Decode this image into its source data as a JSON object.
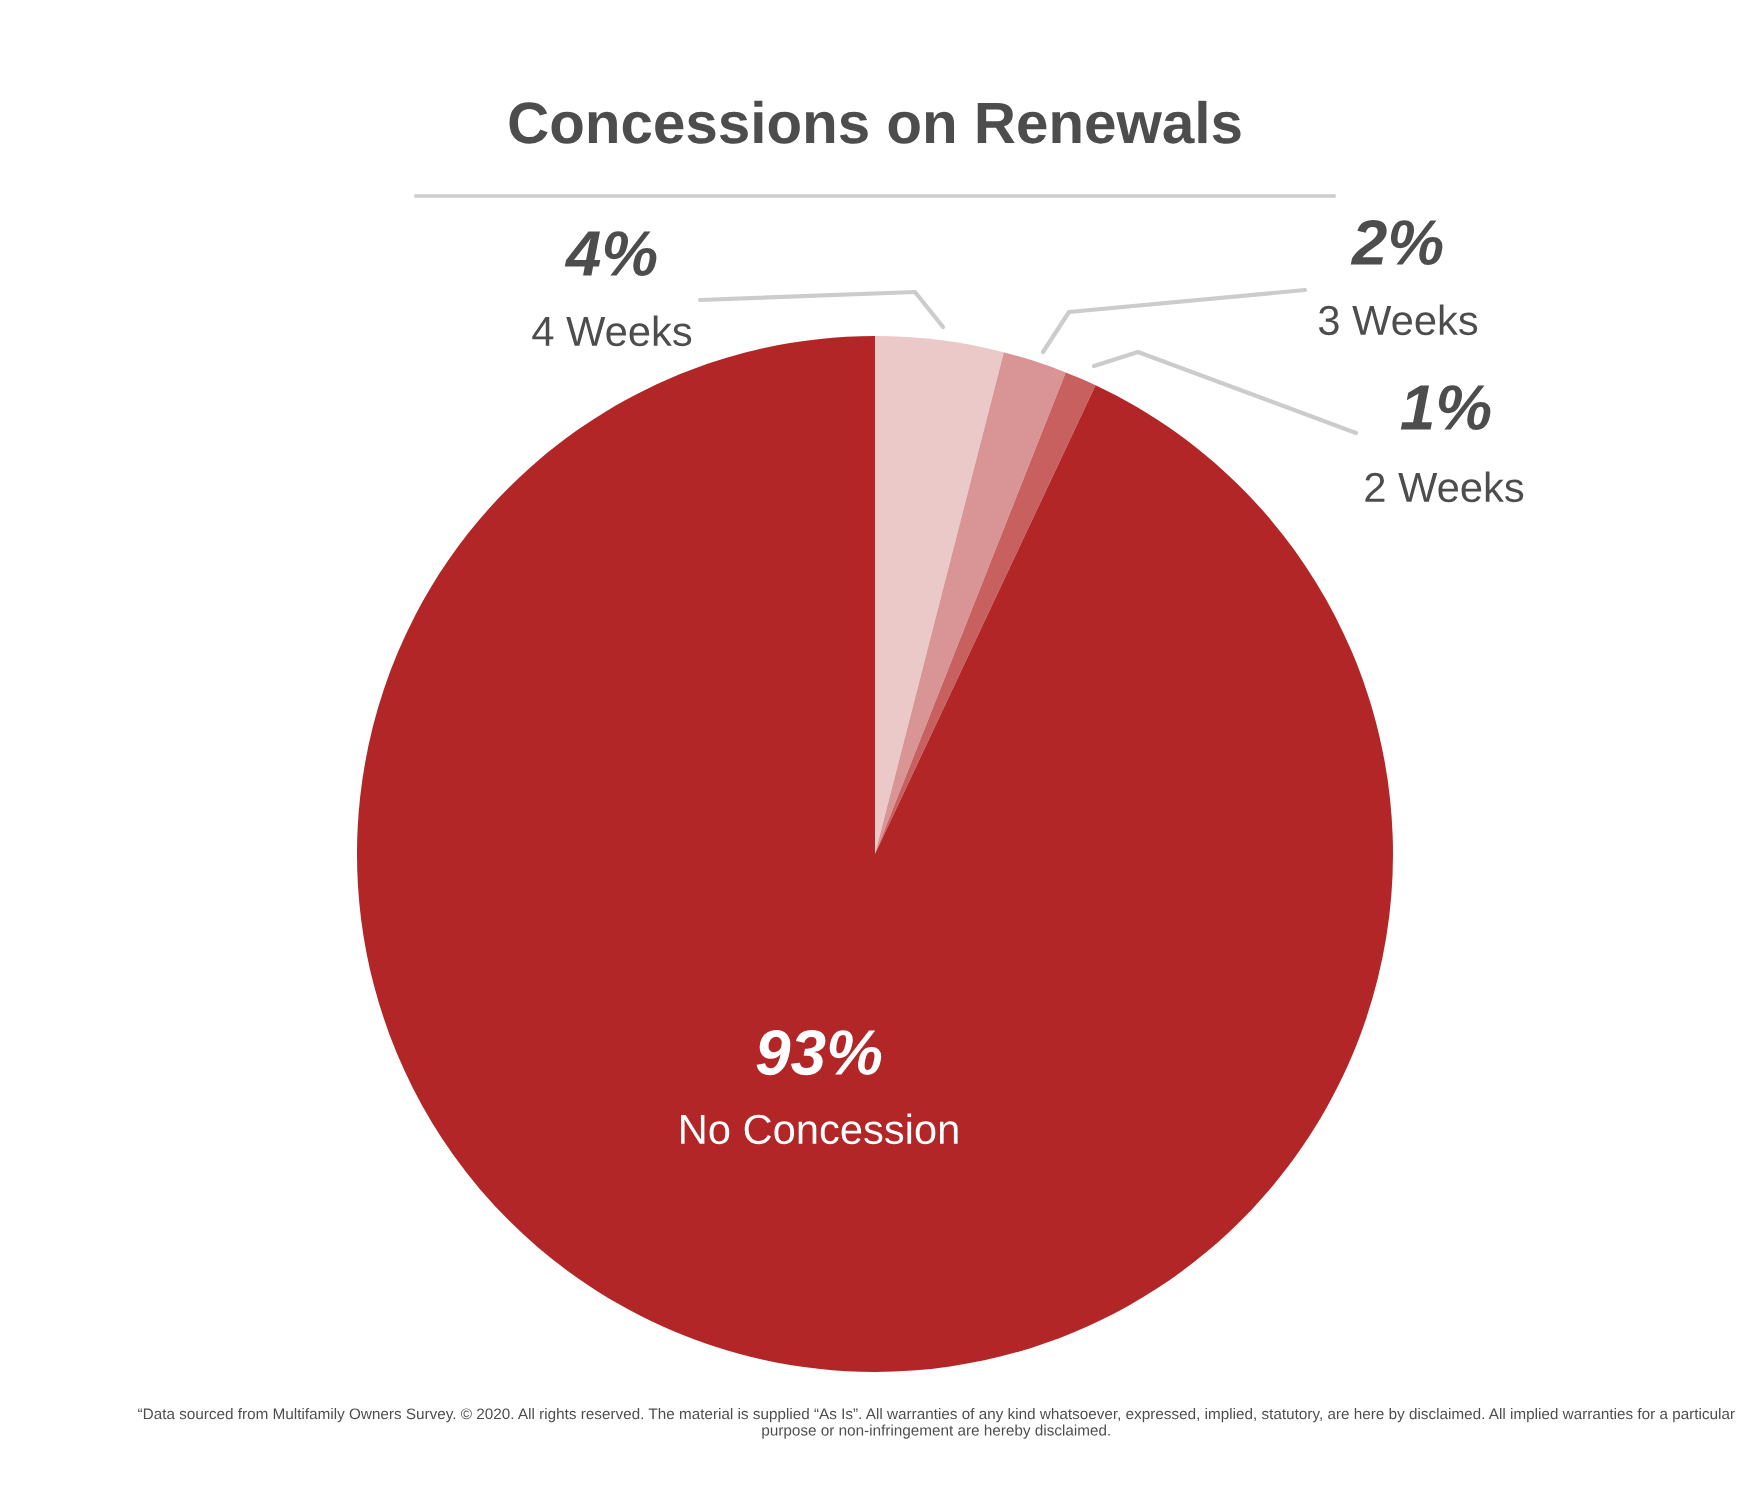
{
  "chart_data": {
    "type": "pie",
    "title": "Concessions on Renewals",
    "categories": [
      "4 Weeks",
      "3 Weeks",
      "2 Weeks",
      "No Concession"
    ],
    "values": [
      4,
      2,
      1,
      93
    ],
    "value_labels": [
      "4%",
      "2%",
      "1%",
      "93%"
    ],
    "colors": [
      "#ecc9c9",
      "#d99595",
      "#c96060",
      "#b22627"
    ],
    "annotations": [
      "“Data sourced from Multifamily Owners Survey. © 2020. All rights reserved. The material is supplied “As Is”. All warranties of any kind whatsoever, expressed, implied, statutory, are here by disclaimed. All implied warranties for a particular purpose or non-infringement are hereby disclaimed."
    ]
  }
}
